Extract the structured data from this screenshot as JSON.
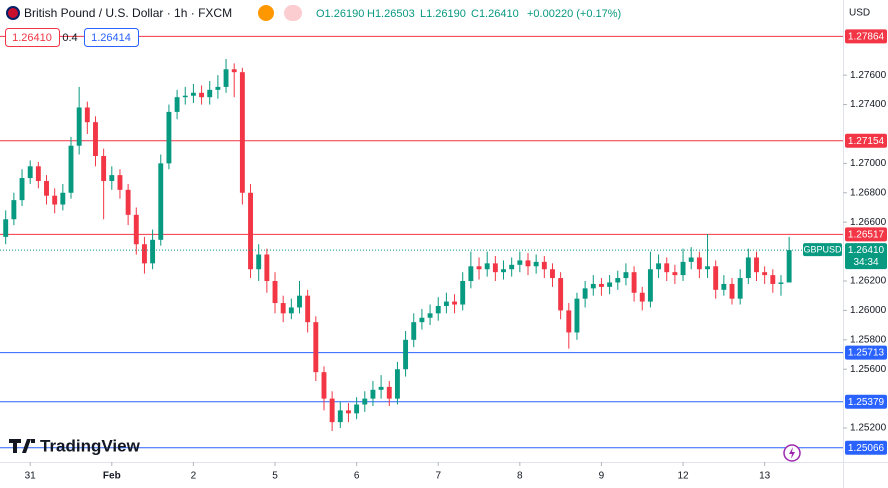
{
  "header": {
    "title": "British Pound / U.S. Dollar · 1h · FXCM",
    "ohlc": [
      "O1.26190",
      "H1.26503",
      "L1.26190",
      "C1.26410",
      "+0.00220 (+0.17%)"
    ],
    "bid": "1.26410",
    "spread": "0.4",
    "ask": "1.26414",
    "logo": "TradingView"
  },
  "chart_data": {
    "type": "candlestick",
    "currency": "USD",
    "symbol_tag": "GBPUSD",
    "countdown": "34:34",
    "up_color": "#089981",
    "down_color": "#f23645",
    "open": [
      1.265,
      1.2662,
      1.2675,
      1.269,
      1.2698,
      1.2688,
      1.2678,
      1.2672,
      1.268,
      1.2712,
      1.2738,
      1.2728,
      1.2705,
      1.2688,
      1.2692,
      1.2682,
      1.2665,
      1.2645,
      1.2632,
      1.2648,
      1.27,
      1.2735,
      1.2745,
      1.2746,
      1.2748,
      1.2745,
      1.275,
      1.2752,
      1.2764,
      1.2762,
      1.268,
      1.2628,
      1.2638,
      1.262,
      1.2605,
      1.2598,
      1.2602,
      1.261,
      1.2592,
      1.2558,
      1.254,
      1.2524,
      1.2532,
      1.253,
      1.2536,
      1.254,
      1.2546,
      1.2548,
      1.254,
      1.256,
      1.258,
      1.2592,
      1.2595,
      1.2598,
      1.2603,
      1.2606,
      1.2604,
      1.262,
      1.263,
      1.2628,
      1.2632,
      1.2626,
      1.2628,
      1.2631,
      1.2634,
      1.263,
      1.2633,
      1.2628,
      1.2622,
      1.26,
      1.2585,
      1.2608,
      1.2615,
      1.2618,
      1.2616,
      1.2619,
      1.2622,
      1.2626,
      1.2612,
      1.2606,
      1.2628,
      1.2632,
      1.2626,
      1.2624,
      1.2633,
      1.2636,
      1.2628,
      1.263,
      1.2614,
      1.2618,
      1.2608,
      1.2622,
      1.2636,
      1.2626,
      1.2624,
      1.2618,
      1.2619
    ],
    "high": [
      1.2668,
      1.268,
      1.2696,
      1.2702,
      1.2701,
      1.2692,
      1.2683,
      1.2686,
      1.2718,
      1.2752,
      1.2742,
      1.2732,
      1.271,
      1.2698,
      1.2696,
      1.2686,
      1.267,
      1.265,
      1.2655,
      1.2706,
      1.274,
      1.275,
      1.2752,
      1.2754,
      1.2753,
      1.2756,
      1.276,
      1.2771,
      1.2768,
      1.2765,
      1.2686,
      1.2645,
      1.2642,
      1.2626,
      1.261,
      1.2608,
      1.262,
      1.2614,
      1.2596,
      1.2562,
      1.2545,
      1.2538,
      1.2537,
      1.2541,
      1.2545,
      1.2552,
      1.2556,
      1.2552,
      1.2565,
      1.2586,
      1.2598,
      1.2601,
      1.2604,
      1.2609,
      1.2612,
      1.2611,
      1.2626,
      1.264,
      1.2636,
      1.264,
      1.2637,
      1.2634,
      1.2636,
      1.264,
      1.2639,
      1.2638,
      1.2637,
      1.2632,
      1.2626,
      1.2605,
      1.2612,
      1.262,
      1.2624,
      1.2622,
      1.2624,
      1.2627,
      1.2632,
      1.263,
      1.2616,
      1.264,
      1.2638,
      1.2636,
      1.2631,
      1.2642,
      1.2643,
      1.264,
      1.2652,
      1.2634,
      1.2624,
      1.2622,
      1.2628,
      1.2642,
      1.264,
      1.263,
      1.2628,
      1.2624,
      1.265
    ],
    "low": [
      1.2645,
      1.2658,
      1.2671,
      1.2686,
      1.2683,
      1.2672,
      1.2666,
      1.2668,
      1.2676,
      1.2706,
      1.272,
      1.2698,
      1.2662,
      1.2682,
      1.2676,
      1.2658,
      1.2638,
      1.2625,
      1.2628,
      1.2644,
      1.2696,
      1.273,
      1.274,
      1.2741,
      1.274,
      1.274,
      1.2744,
      1.2748,
      1.2745,
      1.2672,
      1.2622,
      1.262,
      1.2612,
      1.2598,
      1.2592,
      1.2594,
      1.2598,
      1.2585,
      1.2552,
      1.2532,
      1.2518,
      1.252,
      1.2524,
      1.2526,
      1.2531,
      1.2535,
      1.254,
      1.2535,
      1.2536,
      1.2555,
      1.2575,
      1.2587,
      1.259,
      1.2593,
      1.2598,
      1.2598,
      1.26,
      1.2615,
      1.2621,
      1.2623,
      1.262,
      1.2621,
      1.2623,
      1.2626,
      1.2624,
      1.2625,
      1.2622,
      1.2616,
      1.2594,
      1.2574,
      1.258,
      1.2602,
      1.261,
      1.261,
      1.2611,
      1.2614,
      1.2617,
      1.2606,
      1.26,
      1.2602,
      1.2622,
      1.262,
      1.2618,
      1.262,
      1.2628,
      1.2622,
      1.2622,
      1.2608,
      1.261,
      1.2604,
      1.2604,
      1.2618,
      1.262,
      1.2618,
      1.2612,
      1.261,
      1.2619
    ],
    "close": [
      1.2662,
      1.2675,
      1.269,
      1.2698,
      1.2688,
      1.2678,
      1.2672,
      1.268,
      1.2712,
      1.2738,
      1.2728,
      1.2705,
      1.2688,
      1.2692,
      1.2682,
      1.2665,
      1.2645,
      1.2632,
      1.2648,
      1.27,
      1.2735,
      1.2745,
      1.2746,
      1.2748,
      1.2745,
      1.275,
      1.2752,
      1.2764,
      1.2762,
      1.268,
      1.2628,
      1.2638,
      1.262,
      1.2605,
      1.2598,
      1.2602,
      1.261,
      1.2592,
      1.2558,
      1.254,
      1.2524,
      1.2532,
      1.253,
      1.2536,
      1.254,
      1.2546,
      1.2548,
      1.254,
      1.256,
      1.258,
      1.2592,
      1.2595,
      1.2598,
      1.2603,
      1.2606,
      1.2604,
      1.262,
      1.263,
      1.2628,
      1.2632,
      1.2626,
      1.2628,
      1.2631,
      1.2634,
      1.263,
      1.2633,
      1.2628,
      1.2622,
      1.26,
      1.2585,
      1.2608,
      1.2615,
      1.2618,
      1.2616,
      1.2619,
      1.2622,
      1.2626,
      1.2612,
      1.2606,
      1.2628,
      1.2632,
      1.2626,
      1.2624,
      1.2633,
      1.2636,
      1.2628,
      1.263,
      1.2614,
      1.2618,
      1.2608,
      1.2622,
      1.2636,
      1.2626,
      1.2624,
      1.2618,
      1.2619,
      1.2641
    ],
    "xlim": [
      -0.7,
      102.6
    ],
    "xticks": [
      {
        "value": 3,
        "label": "31"
      },
      {
        "value": 13,
        "label": "Feb"
      },
      {
        "value": 23,
        "label": "2"
      },
      {
        "value": 33,
        "label": "5"
      },
      {
        "value": 43,
        "label": "6"
      },
      {
        "value": 53,
        "label": "7"
      },
      {
        "value": 63,
        "label": "8"
      },
      {
        "value": 73,
        "label": "9"
      },
      {
        "value": 83,
        "label": "12"
      },
      {
        "value": 93,
        "label": "13"
      }
    ],
    "ylim": [
      1.24969,
      1.28111
    ],
    "yticks": [
      {
        "value": 1.276,
        "label": "1.27600"
      },
      {
        "value": 1.274,
        "label": "1.27400"
      },
      {
        "value": 1.27,
        "label": "1.27000"
      },
      {
        "value": 1.268,
        "label": "1.26800"
      },
      {
        "value": 1.266,
        "label": "1.26600"
      },
      {
        "value": 1.262,
        "label": "1.26200"
      },
      {
        "value": 1.26,
        "label": "1.26000"
      },
      {
        "value": 1.258,
        "label": "1.25800"
      },
      {
        "value": 1.256,
        "label": "1.25600"
      },
      {
        "value": 1.252,
        "label": "1.25200"
      }
    ],
    "grid": false,
    "levels": [
      {
        "value": 1.27864,
        "color": "#f23645"
      },
      {
        "value": 1.27154,
        "color": "#f23645"
      },
      {
        "value": 1.26517,
        "color": "#f23645"
      },
      {
        "value": 1.25713,
        "color": "#2962ff"
      },
      {
        "value": 1.25379,
        "color": "#2962ff"
      },
      {
        "value": 1.25066,
        "color": "#2962ff"
      }
    ],
    "last_price": {
      "value": 1.2641,
      "label": "1.26410"
    }
  }
}
